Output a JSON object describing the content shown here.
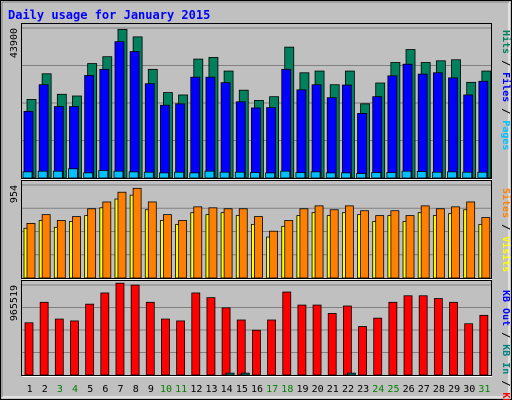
{
  "colors": {
    "background": "#c0c0c0",
    "outer_frame": "#000000",
    "title": "#0000ff",
    "hits": "#00805c",
    "files": "#0000ff",
    "pages": "#00c0ff",
    "visits": "#ffff00",
    "sites": "#ff8000",
    "kbin": "#008080",
    "kbout": "#0000ff",
    "kbf": "#ff0000",
    "weekday_label": "#000000",
    "weekend_label": "#008000"
  },
  "chart_data": [
    {
      "type": "bar",
      "title": "Daily usage for January 2015",
      "ytick_label": "43900",
      "ylim": [
        0,
        43900
      ],
      "legend": [
        "Pages",
        "Files",
        "Hits"
      ],
      "legend_separator": "/",
      "categories": [
        "1",
        "2",
        "3",
        "4",
        "5",
        "6",
        "7",
        "8",
        "9",
        "10",
        "11",
        "12",
        "13",
        "14",
        "15",
        "16",
        "17",
        "18",
        "19",
        "20",
        "21",
        "22",
        "23",
        "24",
        "25",
        "26",
        "27",
        "28",
        "29",
        "30",
        "31"
      ],
      "weekend_days": [
        "3",
        "4",
        "10",
        "11",
        "17",
        "18",
        "24",
        "25",
        "31"
      ],
      "series": [
        {
          "name": "Hits",
          "values": [
            23000,
            30500,
            24500,
            24000,
            33500,
            35500,
            43500,
            41300,
            31800,
            25000,
            24300,
            34800,
            35300,
            31300,
            25700,
            22700,
            23800,
            38300,
            30800,
            31300,
            27300,
            31300,
            21700,
            27800,
            33800,
            37600,
            33800,
            34300,
            34600,
            28000,
            31300
          ]
        },
        {
          "name": "Files",
          "values": [
            19500,
            27300,
            20900,
            20900,
            30000,
            31800,
            39900,
            37000,
            27600,
            21300,
            21700,
            29500,
            29500,
            27900,
            22300,
            20500,
            20600,
            31800,
            25800,
            27300,
            23500,
            27200,
            18900,
            23800,
            29900,
            33300,
            30400,
            30800,
            29300,
            24300,
            28300
          ]
        },
        {
          "name": "Pages",
          "values": [
            1800,
            2000,
            2000,
            2700,
            1500,
            2200,
            2000,
            1800,
            1700,
            1500,
            1700,
            1500,
            2000,
            1700,
            1700,
            1600,
            1500,
            2000,
            1600,
            1800,
            1500,
            1500,
            1300,
            1600,
            1600,
            2000,
            1900,
            1700,
            1800,
            1700,
            1700
          ]
        }
      ]
    },
    {
      "type": "bar",
      "ytick_label": "954",
      "ylim": [
        0,
        954
      ],
      "legend": [
        "Visits",
        "Sites"
      ],
      "legend_separator": "/",
      "categories": [
        "1",
        "2",
        "3",
        "4",
        "5",
        "6",
        "7",
        "8",
        "9",
        "10",
        "11",
        "12",
        "13",
        "14",
        "15",
        "16",
        "17",
        "18",
        "19",
        "20",
        "21",
        "22",
        "23",
        "24",
        "25",
        "26",
        "27",
        "28",
        "29",
        "30",
        "31"
      ],
      "series": [
        {
          "name": "Sites",
          "values": [
            560,
            650,
            590,
            630,
            710,
            780,
            880,
            920,
            780,
            650,
            590,
            730,
            720,
            710,
            710,
            630,
            480,
            590,
            710,
            740,
            700,
            740,
            690,
            640,
            690,
            640,
            740,
            710,
            730,
            780,
            620
          ]
        },
        {
          "name": "Visits",
          "values": [
            510,
            590,
            520,
            580,
            640,
            720,
            810,
            850,
            700,
            590,
            550,
            670,
            650,
            670,
            640,
            550,
            420,
            530,
            640,
            670,
            640,
            670,
            650,
            580,
            640,
            580,
            670,
            640,
            660,
            700,
            550
          ]
        }
      ]
    },
    {
      "type": "bar",
      "ytick_label": "965519",
      "ylim": [
        0,
        965519
      ],
      "legend": [
        "KB F",
        "KB In",
        "KB Out"
      ],
      "legend_separator": "/",
      "categories": [
        "1",
        "2",
        "3",
        "4",
        "5",
        "6",
        "7",
        "8",
        "9",
        "10",
        "11",
        "12",
        "13",
        "14",
        "15",
        "16",
        "17",
        "18",
        "19",
        "20",
        "21",
        "22",
        "23",
        "24",
        "25",
        "26",
        "27",
        "28",
        "29",
        "30",
        "31"
      ],
      "series": [
        {
          "name": "KB F",
          "values": [
            560000,
            780000,
            600000,
            580000,
            760000,
            880000,
            985000,
            965000,
            780000,
            600000,
            580000,
            880000,
            830000,
            720000,
            590000,
            480000,
            590000,
            890000,
            750000,
            750000,
            660000,
            740000,
            520000,
            610000,
            780000,
            850000,
            850000,
            820000,
            780000,
            550000,
            640000
          ]
        },
        {
          "name": "KB In",
          "values": [
            0,
            0,
            0,
            0,
            0,
            0,
            0,
            0,
            0,
            0,
            0,
            0,
            0,
            20000,
            20000,
            0,
            0,
            0,
            0,
            0,
            0,
            20000,
            0,
            0,
            0,
            0,
            0,
            0,
            0,
            0,
            0
          ]
        }
      ]
    }
  ]
}
